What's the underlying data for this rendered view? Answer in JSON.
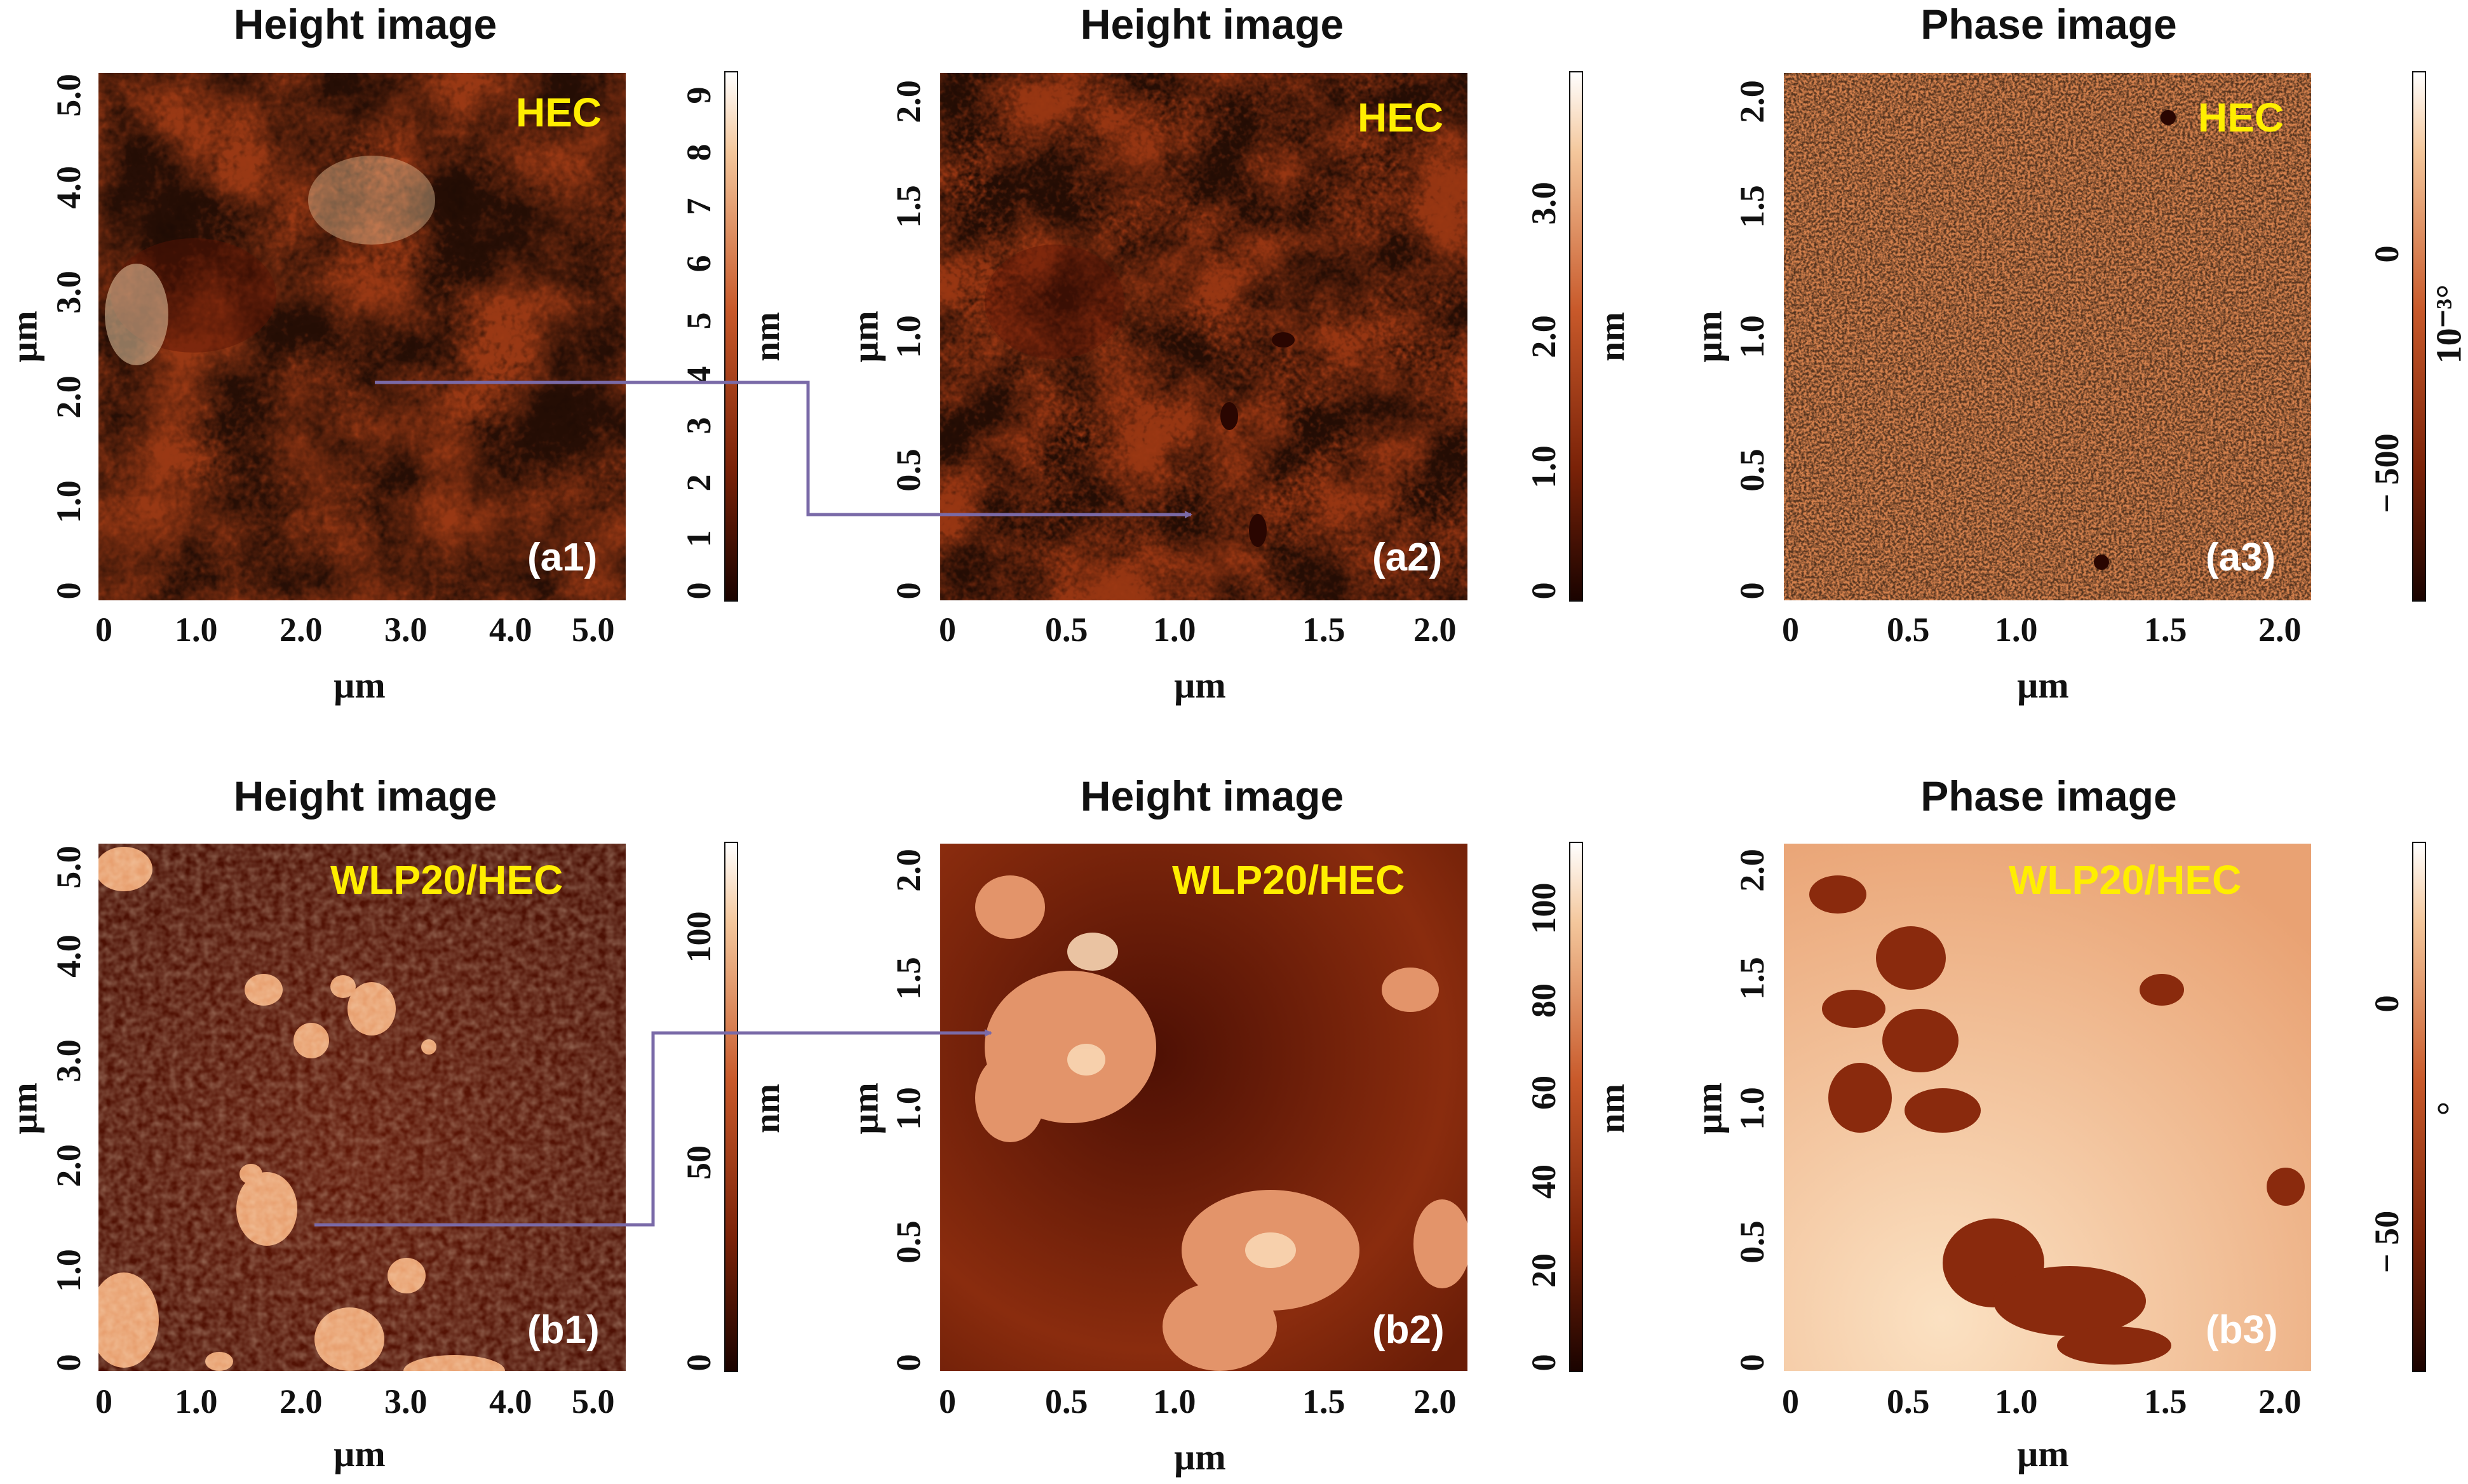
{
  "panels": [
    {
      "title": "Height image",
      "sample": "HEC",
      "label": "(a1)",
      "x_ticks": [
        "0",
        "1.0",
        "2.0",
        "3.0",
        "4.0",
        "5.0"
      ],
      "y_ticks": [
        "0",
        "1.0",
        "2.0",
        "3.0",
        "4.0",
        "5.0"
      ],
      "x_axis": "µm",
      "y_axis": "µm",
      "cbar_ticks": [
        "0",
        "1",
        "2",
        "3",
        "4",
        "5",
        "6",
        "7",
        "8",
        "9"
      ],
      "cbar_unit": "nm"
    },
    {
      "title": "Height image",
      "sample": "HEC",
      "label": "(a2)",
      "x_ticks": [
        "0",
        "0.5",
        "1.0",
        "1.5",
        "2.0"
      ],
      "y_ticks": [
        "0",
        "0.5",
        "1.0",
        "1.5",
        "2.0"
      ],
      "x_axis": "µm",
      "y_axis": "µm",
      "cbar_ticks": [
        "0",
        "1.0",
        "2.0",
        "3.0"
      ],
      "cbar_unit": "nm"
    },
    {
      "title": "Phase image",
      "sample": "HEC",
      "label": "(a3)",
      "x_ticks": [
        "0",
        "0.5",
        "1.0",
        "1.5",
        "2.0"
      ],
      "y_ticks": [
        "0",
        "0.5",
        "1.0",
        "1.5",
        "2.0"
      ],
      "x_axis": "µm",
      "y_axis": "µm",
      "cbar_ticks": [
        "− 500",
        "0"
      ],
      "cbar_unit": "10⁻³°"
    },
    {
      "title": "Height image",
      "sample": "WLP20/HEC",
      "label": "(b1)",
      "x_ticks": [
        "0",
        "1.0",
        "2.0",
        "3.0",
        "4.0",
        "5.0"
      ],
      "y_ticks": [
        "0",
        "1.0",
        "2.0",
        "3.0",
        "4.0",
        "5.0"
      ],
      "x_axis": "µm",
      "y_axis": "µm",
      "cbar_ticks": [
        "0",
        "50",
        "100"
      ],
      "cbar_unit": "nm"
    },
    {
      "title": "Height image",
      "sample": "WLP20/HEC",
      "label": "(b2)",
      "x_ticks": [
        "0",
        "0.5",
        "1.0",
        "1.5",
        "2.0"
      ],
      "y_ticks": [
        "0",
        "0.5",
        "1.0",
        "1.5",
        "2.0"
      ],
      "x_axis": "µm",
      "y_axis": "µm",
      "cbar_ticks": [
        "0",
        "20",
        "40",
        "60",
        "80",
        "100"
      ],
      "cbar_unit": "nm"
    },
    {
      "title": "Phase image",
      "sample": "WLP20/HEC",
      "label": "(b3)",
      "x_ticks": [
        "0",
        "0.5",
        "1.0",
        "1.5",
        "2.0"
      ],
      "y_ticks": [
        "0",
        "0.5",
        "1.0",
        "1.5",
        "2.0"
      ],
      "x_axis": "µm",
      "y_axis": "µm",
      "cbar_ticks": [
        "− 50",
        "0"
      ],
      "cbar_unit": "°"
    }
  ],
  "colors": {
    "afm_dark": "#3a0b02",
    "afm_mid": "#b5461d",
    "afm_light": "#fbe3c4",
    "sample_label": "#ffee00",
    "arrow": "#7a6aa8"
  }
}
